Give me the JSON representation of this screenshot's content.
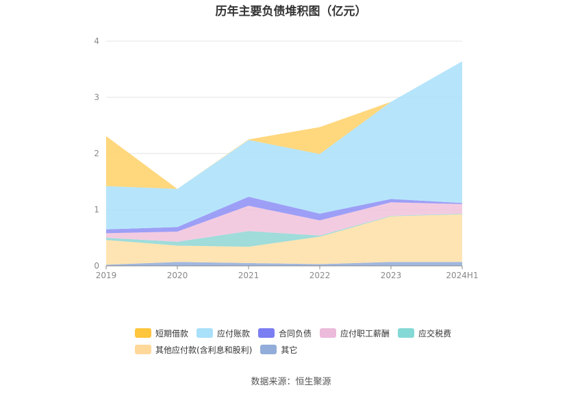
{
  "title": "历年主要负债堆积图（亿元）",
  "source": "数据来源：恒生聚源",
  "chart_data": {
    "type": "area",
    "stacked": true,
    "categories": [
      "2019",
      "2020",
      "2021",
      "2022",
      "2023",
      "2024H1"
    ],
    "ylim": [
      0,
      4
    ],
    "yticks": [
      "0",
      "1",
      "2",
      "3",
      "4"
    ],
    "grid": true,
    "legend_position": "bottom",
    "series": [
      {
        "name": "其它",
        "color": "#91acd9",
        "values": [
          0.02,
          0.07,
          0.05,
          0.03,
          0.07,
          0.07
        ]
      },
      {
        "name": "其他应付款(含利息和股利)",
        "color": "#ffdfa6",
        "values": [
          0.44,
          0.29,
          0.29,
          0.49,
          0.81,
          0.85
        ]
      },
      {
        "name": "应交税费",
        "color": "#8ed6d4",
        "values": [
          0.04,
          0.07,
          0.28,
          0.02,
          0.01,
          0.01
        ]
      },
      {
        "name": "应付职工薪酬",
        "color": "#f1c2dc",
        "values": [
          0.08,
          0.18,
          0.45,
          0.27,
          0.24,
          0.17
        ]
      },
      {
        "name": "合同负债",
        "color": "#8c8ef5",
        "values": [
          0.07,
          0.08,
          0.16,
          0.12,
          0.06,
          0.02
        ]
      },
      {
        "name": "应付账款",
        "color": "#a9e0fa",
        "values": [
          0.77,
          0.68,
          1.01,
          1.06,
          1.73,
          2.52
        ]
      },
      {
        "name": "短期借款",
        "color": "#ffd066",
        "values": [
          0.89,
          0.0,
          0.01,
          0.48,
          0.0,
          0.0
        ]
      }
    ],
    "legend": [
      {
        "name": "短期借款",
        "color": "#ffc53d"
      },
      {
        "name": "应付账款",
        "color": "#a9e0fa"
      },
      {
        "name": "合同负债",
        "color": "#7b7ef2"
      },
      {
        "name": "应付职工薪酬",
        "color": "#ecbadb"
      },
      {
        "name": "应交税费",
        "color": "#84d9d6"
      },
      {
        "name": "其他应付款(含利息和股利)",
        "color": "#ffd89a"
      },
      {
        "name": "其它",
        "color": "#92add9"
      }
    ]
  }
}
